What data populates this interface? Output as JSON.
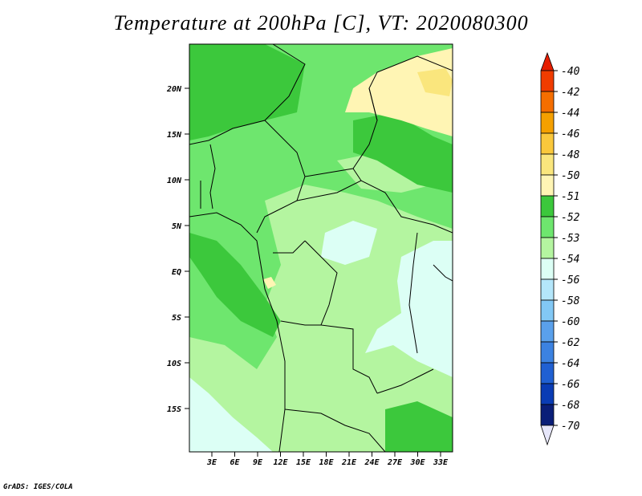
{
  "title": "Temperature at 200hPa [C], VT: 2020080300",
  "credit": "GrADS: IGES/COLA",
  "map": {
    "region": "Central Africa",
    "lat_labels": [
      "20N",
      "15N",
      "10N",
      "5N",
      "EQ",
      "5S",
      "10S",
      "15S"
    ],
    "lon_labels": [
      "3E",
      "6E",
      "9E",
      "12E",
      "15E",
      "18E",
      "21E",
      "24E",
      "27E",
      "30E",
      "33E"
    ]
  },
  "colorbar": {
    "labels": [
      "-40",
      "-42",
      "-44",
      "-46",
      "-48",
      "-50",
      "-51",
      "-52",
      "-53",
      "-54",
      "-56",
      "-58",
      "-60",
      "-62",
      "-64",
      "-66",
      "-68",
      "-70"
    ],
    "colors": [
      "#e61e00",
      "#f03c00",
      "#f56e00",
      "#f5a000",
      "#fac83c",
      "#fae67d",
      "#fff5b4",
      "#3cc83c",
      "#6ee66e",
      "#b4f5a0",
      "#dcfff5",
      "#b4e6fa",
      "#82c8f5",
      "#5aa0eb",
      "#3c82e1",
      "#2060d2",
      "#0a3cb4",
      "#0a1e78"
    ]
  }
}
